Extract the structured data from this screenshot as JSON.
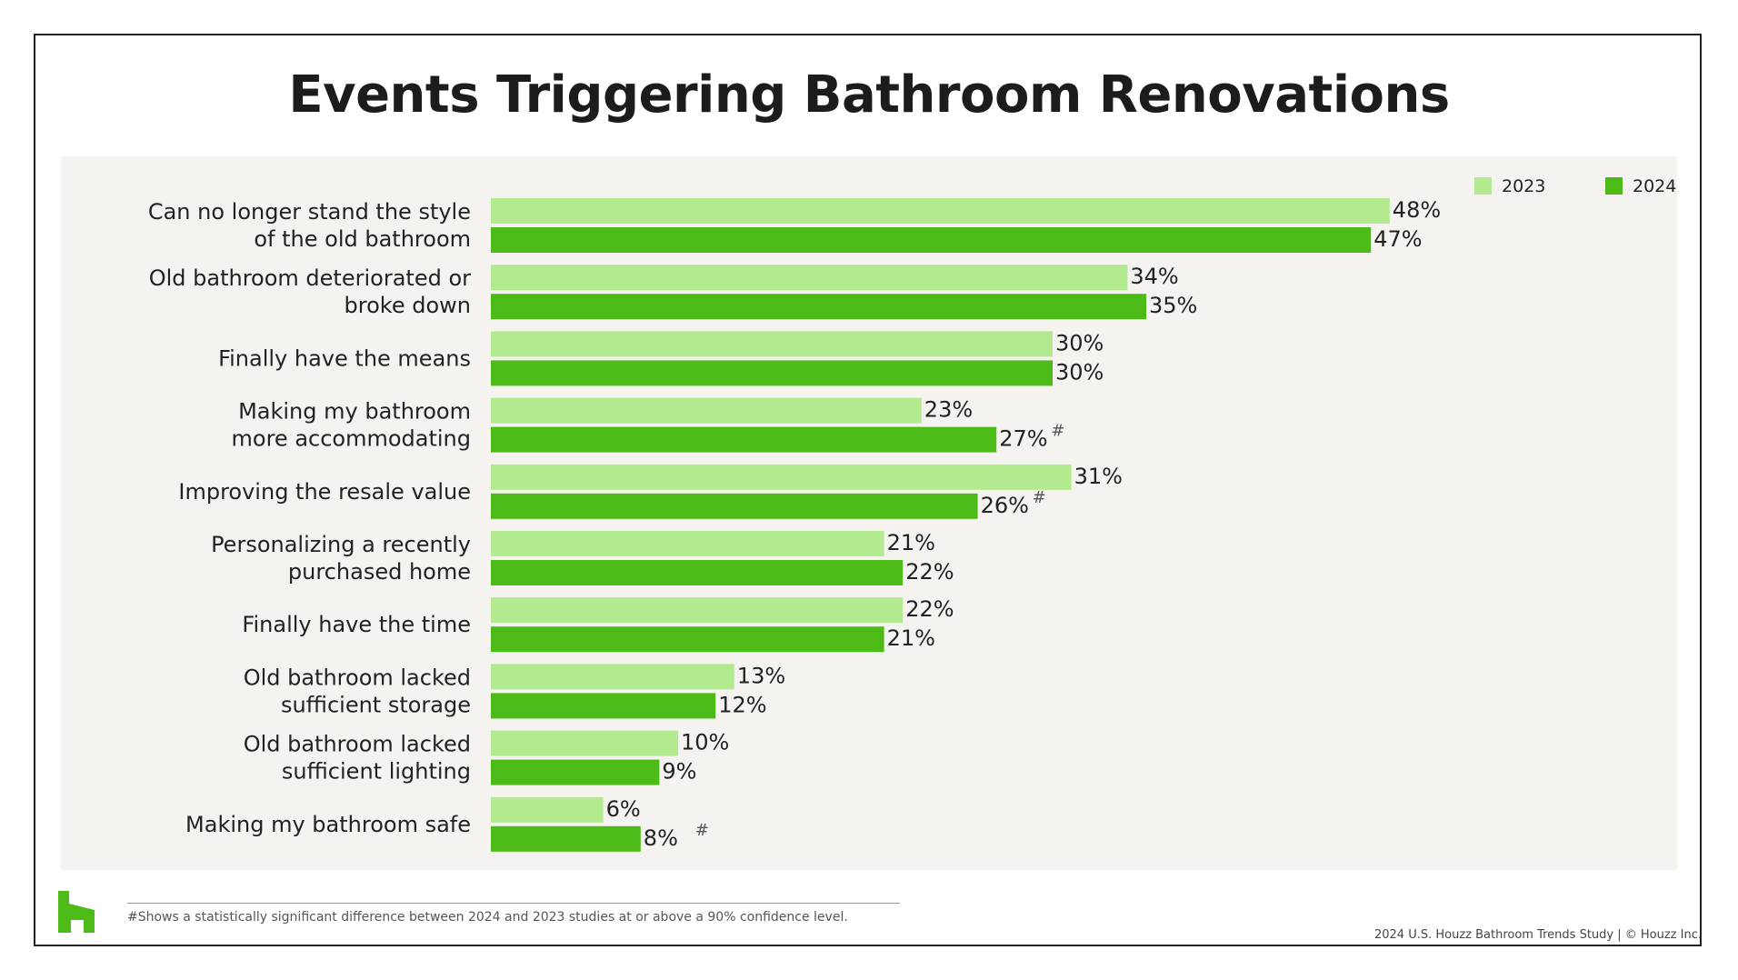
{
  "title": "Events Triggering Bathroom Renovations",
  "colors": {
    "2023": "#b3ea8f",
    "2024": "#4cbb17",
    "brand": "#4cbb17"
  },
  "chart_data": {
    "type": "bar",
    "orientation": "horizontal",
    "categories": [
      [
        "Can no longer stand the style",
        "of the old bathroom"
      ],
      [
        "Old bathroom deteriorated or",
        "broke down"
      ],
      [
        "Finally have the means"
      ],
      [
        "Making my bathroom",
        "more accommodating"
      ],
      [
        "Improving the resale value"
      ],
      [
        "Personalizing a recently",
        "purchased home"
      ],
      [
        "Finally have the time"
      ],
      [
        "Old bathroom lacked",
        "sufficient storage"
      ],
      [
        "Old bathroom lacked",
        "sufficient lighting"
      ],
      [
        "Making my bathroom safe"
      ]
    ],
    "series": [
      {
        "name": "2023",
        "values": [
          48,
          34,
          30,
          23,
          31,
          21,
          22,
          13,
          10,
          6
        ],
        "significant": [
          false,
          false,
          false,
          false,
          false,
          false,
          false,
          false,
          false,
          false
        ]
      },
      {
        "name": "2024",
        "values": [
          47,
          35,
          30,
          27,
          26,
          22,
          21,
          12,
          9,
          8
        ],
        "significant": [
          false,
          false,
          false,
          true,
          true,
          false,
          false,
          false,
          false,
          true
        ]
      }
    ],
    "value_suffix": "%",
    "significance_marker": "#",
    "legend_position": "top-right",
    "xlim": [
      0,
      60
    ]
  },
  "footnote": "#Shows a statistically significant difference between 2024 and 2023 studies at or above a 90% confidence level.",
  "credit": "2024 U.S. Houzz Bathroom Trends Study  |  © Houzz Inc."
}
